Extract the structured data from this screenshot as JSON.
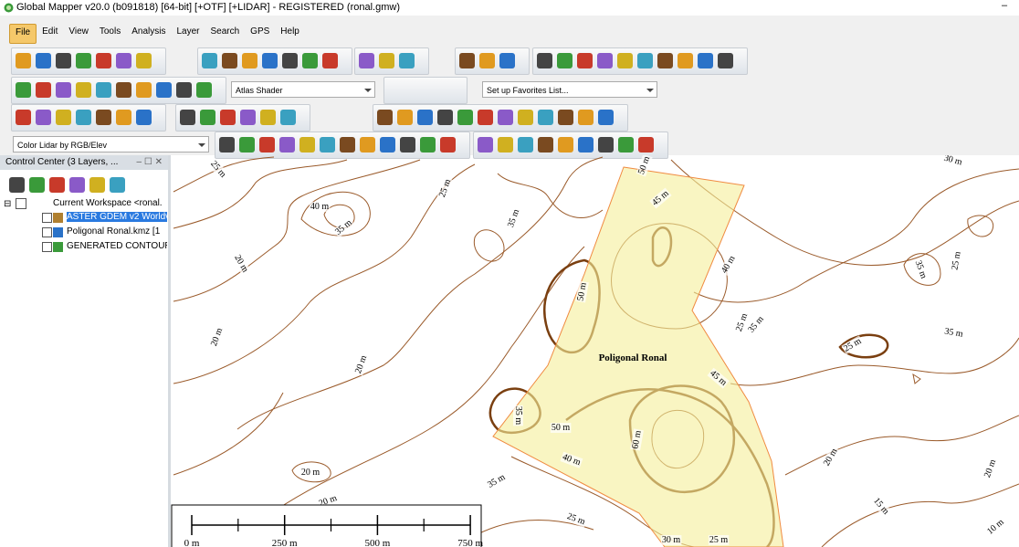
{
  "window": {
    "title": "Global Mapper v20.0 (b091818) [64-bit] [+OTF] [+LIDAR] - REGISTERED (ronal.gmw)",
    "minimize": "–"
  },
  "menu": [
    "File",
    "Edit",
    "View",
    "Tools",
    "Analysis",
    "Layer",
    "Search",
    "GPS",
    "Help"
  ],
  "toolbars": {
    "shader": "Atlas Shader",
    "favorites": "Set up Favorites List...",
    "lidar": "Color Lidar by RGB/Elev"
  },
  "control_center": {
    "title": "Control Center (3 Layers, ...",
    "controls": "– ☐ ✕",
    "workspace": "Current Workspace <ronal.",
    "layers": [
      "ASTER GDEM v2 Worldv",
      "Poligonal Ronal.kmz [1",
      "GENERATED CONTOUR"
    ]
  },
  "map": {
    "polygon_label": "Poligonal Ronal",
    "contour_labels": [
      "25 m",
      "40 m",
      "35 m",
      "25 m",
      "35 m",
      "20 m",
      "50 m",
      "45 m",
      "40 m",
      "50 m",
      "20 m",
      "20 m",
      "45 m",
      "35 m",
      "50 m",
      "60 m",
      "40 m",
      "20 m",
      "35 m",
      "20 m",
      "25 m",
      "30 m",
      "25 m",
      "25 m",
      "35 m",
      "25 m",
      "35 m",
      "35 m",
      "25 m",
      "20 m",
      "30 m",
      "20 m",
      "15 m",
      "10 m"
    ],
    "scale_labels": [
      "0 m",
      "250 m",
      "500 m",
      "750 m"
    ]
  }
}
